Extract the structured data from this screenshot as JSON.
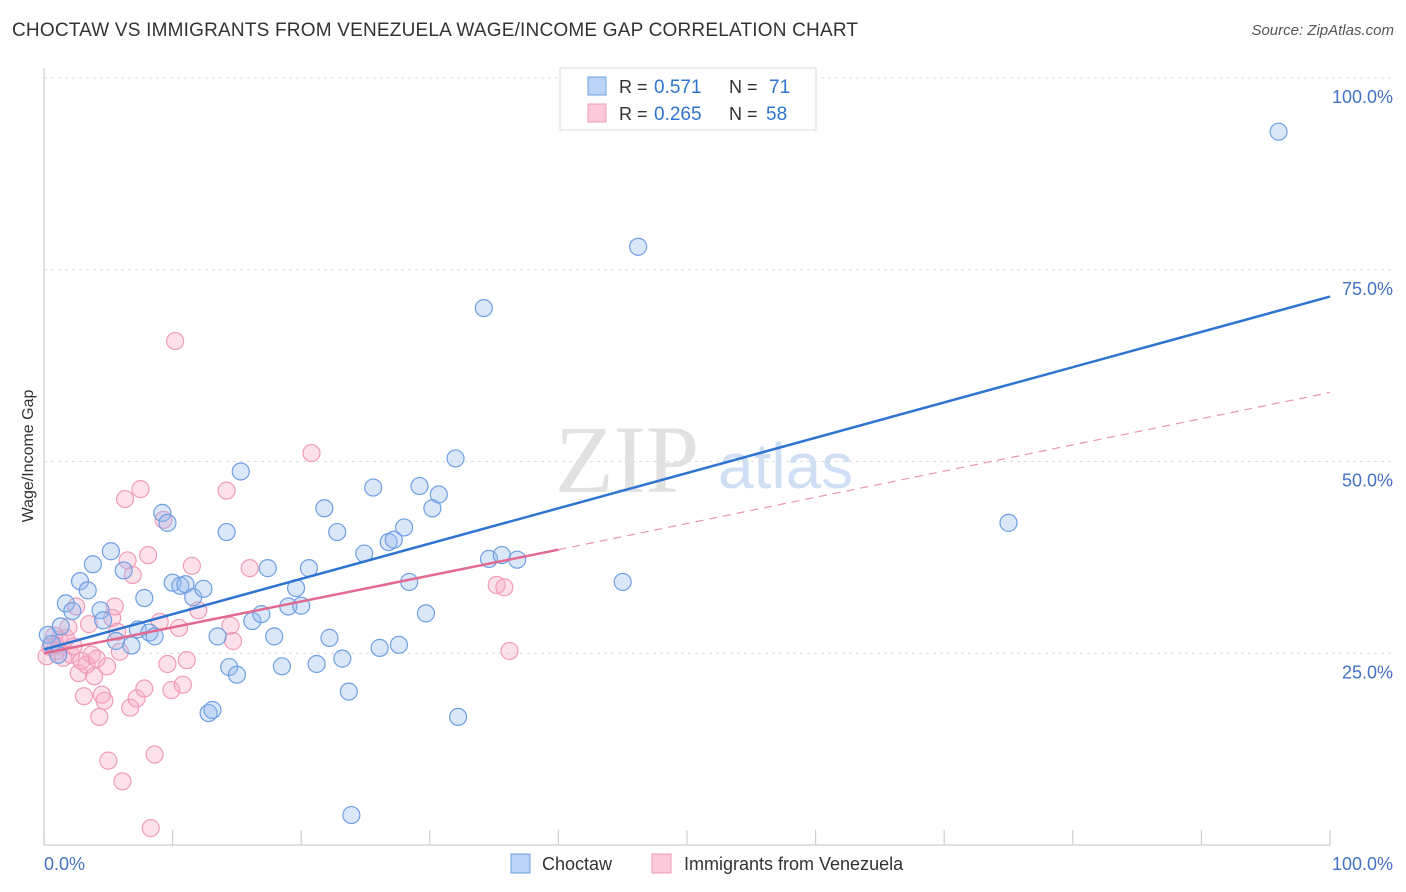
{
  "header": {
    "title": "CHOCTAW VS IMMIGRANTS FROM VENEZUELA WAGE/INCOME GAP CORRELATION CHART",
    "source": "Source: ZipAtlas.com"
  },
  "watermark": {
    "zip": "ZIP",
    "atlas": "atlas"
  },
  "legend_top": {
    "rows": [
      {
        "r_label": "R =",
        "r_value": "0.571",
        "n_label": "N =",
        "n_value": "71"
      },
      {
        "r_label": "R =",
        "r_value": "0.265",
        "n_label": "N =",
        "n_value": "58"
      }
    ]
  },
  "chart_data": {
    "type": "scatter",
    "title": "CHOCTAW VS IMMIGRANTS FROM VENEZUELA WAGE/INCOME GAP CORRELATION CHART",
    "xlabel": "",
    "ylabel": "Wage/Income Gap",
    "xlim": [
      0,
      100
    ],
    "ylim": [
      0,
      100
    ],
    "x_tick_labels": [
      "0.0%",
      "100.0%"
    ],
    "y_tick_labels": [
      "25.0%",
      "50.0%",
      "75.0%",
      "100.0%"
    ],
    "y_ticks": [
      25,
      50,
      75,
      100
    ],
    "grid": true,
    "legend_position": "bottom-center",
    "colors": {
      "choctaw": "#6f9fe3",
      "venezuela": "#f29bb9",
      "choctaw_line": "#2e74d0",
      "venezuela_line": "#e2698f"
    },
    "series": [
      {
        "name": "Choctaw",
        "r": 0.571,
        "n": 71,
        "trend": {
          "x": [
            0,
            100
          ],
          "y": [
            25.5,
            71.5
          ]
        },
        "points": [
          [
            0.3,
            27.4
          ],
          [
            0.6,
            26.2
          ],
          [
            1.1,
            24.8
          ],
          [
            1.3,
            28.5
          ],
          [
            1.7,
            31.5
          ],
          [
            2.2,
            30.5
          ],
          [
            2.8,
            34.4
          ],
          [
            3.4,
            33.2
          ],
          [
            3.8,
            36.6
          ],
          [
            4.4,
            30.6
          ],
          [
            4.6,
            29.3
          ],
          [
            5.2,
            38.3
          ],
          [
            5.6,
            26.6
          ],
          [
            6.2,
            35.8
          ],
          [
            6.8,
            26.0
          ],
          [
            7.3,
            28.1
          ],
          [
            7.8,
            32.2
          ],
          [
            8.2,
            27.7
          ],
          [
            8.6,
            27.2
          ],
          [
            9.2,
            43.3
          ],
          [
            9.6,
            42.0
          ],
          [
            10.0,
            34.2
          ],
          [
            10.6,
            33.8
          ],
          [
            11.0,
            34.0
          ],
          [
            11.6,
            32.3
          ],
          [
            12.4,
            33.4
          ],
          [
            12.8,
            17.2
          ],
          [
            13.1,
            17.6
          ],
          [
            13.5,
            27.2
          ],
          [
            14.2,
            40.8
          ],
          [
            14.4,
            23.2
          ],
          [
            15.0,
            22.2
          ],
          [
            15.3,
            48.7
          ],
          [
            16.2,
            29.2
          ],
          [
            16.9,
            30.1
          ],
          [
            17.4,
            36.1
          ],
          [
            17.9,
            27.2
          ],
          [
            18.5,
            23.3
          ],
          [
            19.0,
            31.1
          ],
          [
            19.6,
            33.5
          ],
          [
            20.0,
            31.2
          ],
          [
            20.6,
            36.1
          ],
          [
            21.2,
            23.6
          ],
          [
            21.8,
            43.9
          ],
          [
            22.2,
            27.0
          ],
          [
            22.8,
            40.8
          ],
          [
            23.2,
            24.3
          ],
          [
            23.7,
            20.0
          ],
          [
            23.9,
            3.9
          ],
          [
            24.9,
            38.0
          ],
          [
            25.6,
            46.6
          ],
          [
            26.1,
            25.7
          ],
          [
            26.8,
            39.5
          ],
          [
            27.2,
            39.8
          ],
          [
            27.6,
            26.1
          ],
          [
            28.0,
            41.4
          ],
          [
            28.4,
            34.3
          ],
          [
            29.2,
            46.8
          ],
          [
            29.7,
            30.2
          ],
          [
            30.2,
            43.9
          ],
          [
            30.7,
            45.7
          ],
          [
            32.0,
            50.4
          ],
          [
            32.2,
            16.7
          ],
          [
            34.6,
            37.3
          ],
          [
            35.6,
            37.8
          ],
          [
            36.8,
            37.2
          ],
          [
            34.2,
            70.0
          ],
          [
            46.2,
            78.0
          ],
          [
            45.0,
            34.3
          ],
          [
            75.0,
            42.0
          ],
          [
            96.0,
            93.0
          ]
        ]
      },
      {
        "name": "Immigrants from Venezuela",
        "r": 0.265,
        "n": 58,
        "trend": {
          "x": [
            0,
            40
          ],
          "y": [
            25.0,
            38.5
          ]
        },
        "trend_extension": {
          "x": [
            40,
            100
          ],
          "y": [
            38.5,
            59.0
          ]
        },
        "points": [
          [
            0.2,
            24.6
          ],
          [
            0.5,
            25.8
          ],
          [
            0.8,
            27.3
          ],
          [
            1.0,
            25.3
          ],
          [
            1.2,
            26.8
          ],
          [
            1.5,
            24.4
          ],
          [
            1.7,
            27.0
          ],
          [
            1.9,
            28.4
          ],
          [
            2.1,
            24.8
          ],
          [
            2.3,
            25.9
          ],
          [
            2.5,
            31.1
          ],
          [
            2.7,
            22.4
          ],
          [
            2.9,
            24.0
          ],
          [
            3.1,
            19.4
          ],
          [
            3.3,
            23.5
          ],
          [
            3.5,
            28.8
          ],
          [
            3.7,
            24.8
          ],
          [
            3.9,
            22.0
          ],
          [
            4.1,
            24.3
          ],
          [
            4.3,
            16.7
          ],
          [
            4.5,
            19.6
          ],
          [
            4.7,
            18.8
          ],
          [
            4.9,
            23.3
          ],
          [
            5.0,
            11.0
          ],
          [
            5.3,
            29.6
          ],
          [
            5.5,
            31.1
          ],
          [
            5.7,
            27.8
          ],
          [
            5.9,
            25.2
          ],
          [
            6.1,
            8.3
          ],
          [
            6.3,
            45.1
          ],
          [
            6.5,
            37.1
          ],
          [
            6.7,
            17.9
          ],
          [
            6.9,
            35.2
          ],
          [
            7.2,
            19.1
          ],
          [
            7.5,
            46.4
          ],
          [
            7.8,
            20.4
          ],
          [
            8.1,
            37.8
          ],
          [
            8.3,
            2.2
          ],
          [
            8.6,
            11.8
          ],
          [
            9.0,
            29.1
          ],
          [
            9.3,
            42.4
          ],
          [
            9.6,
            23.6
          ],
          [
            9.9,
            20.2
          ],
          [
            10.2,
            65.7
          ],
          [
            10.5,
            28.3
          ],
          [
            10.8,
            20.9
          ],
          [
            11.1,
            24.1
          ],
          [
            11.5,
            36.4
          ],
          [
            12.0,
            30.6
          ],
          [
            14.2,
            46.2
          ],
          [
            14.5,
            28.6
          ],
          [
            14.7,
            26.6
          ],
          [
            16.0,
            36.1
          ],
          [
            20.8,
            51.1
          ],
          [
            35.2,
            33.9
          ],
          [
            35.8,
            33.6
          ],
          [
            36.2,
            25.3
          ],
          [
            0.9,
            26.0
          ]
        ]
      }
    ]
  },
  "legend_bottom": {
    "items": [
      {
        "label": "Choctaw"
      },
      {
        "label": "Immigrants from Venezuela"
      }
    ]
  }
}
